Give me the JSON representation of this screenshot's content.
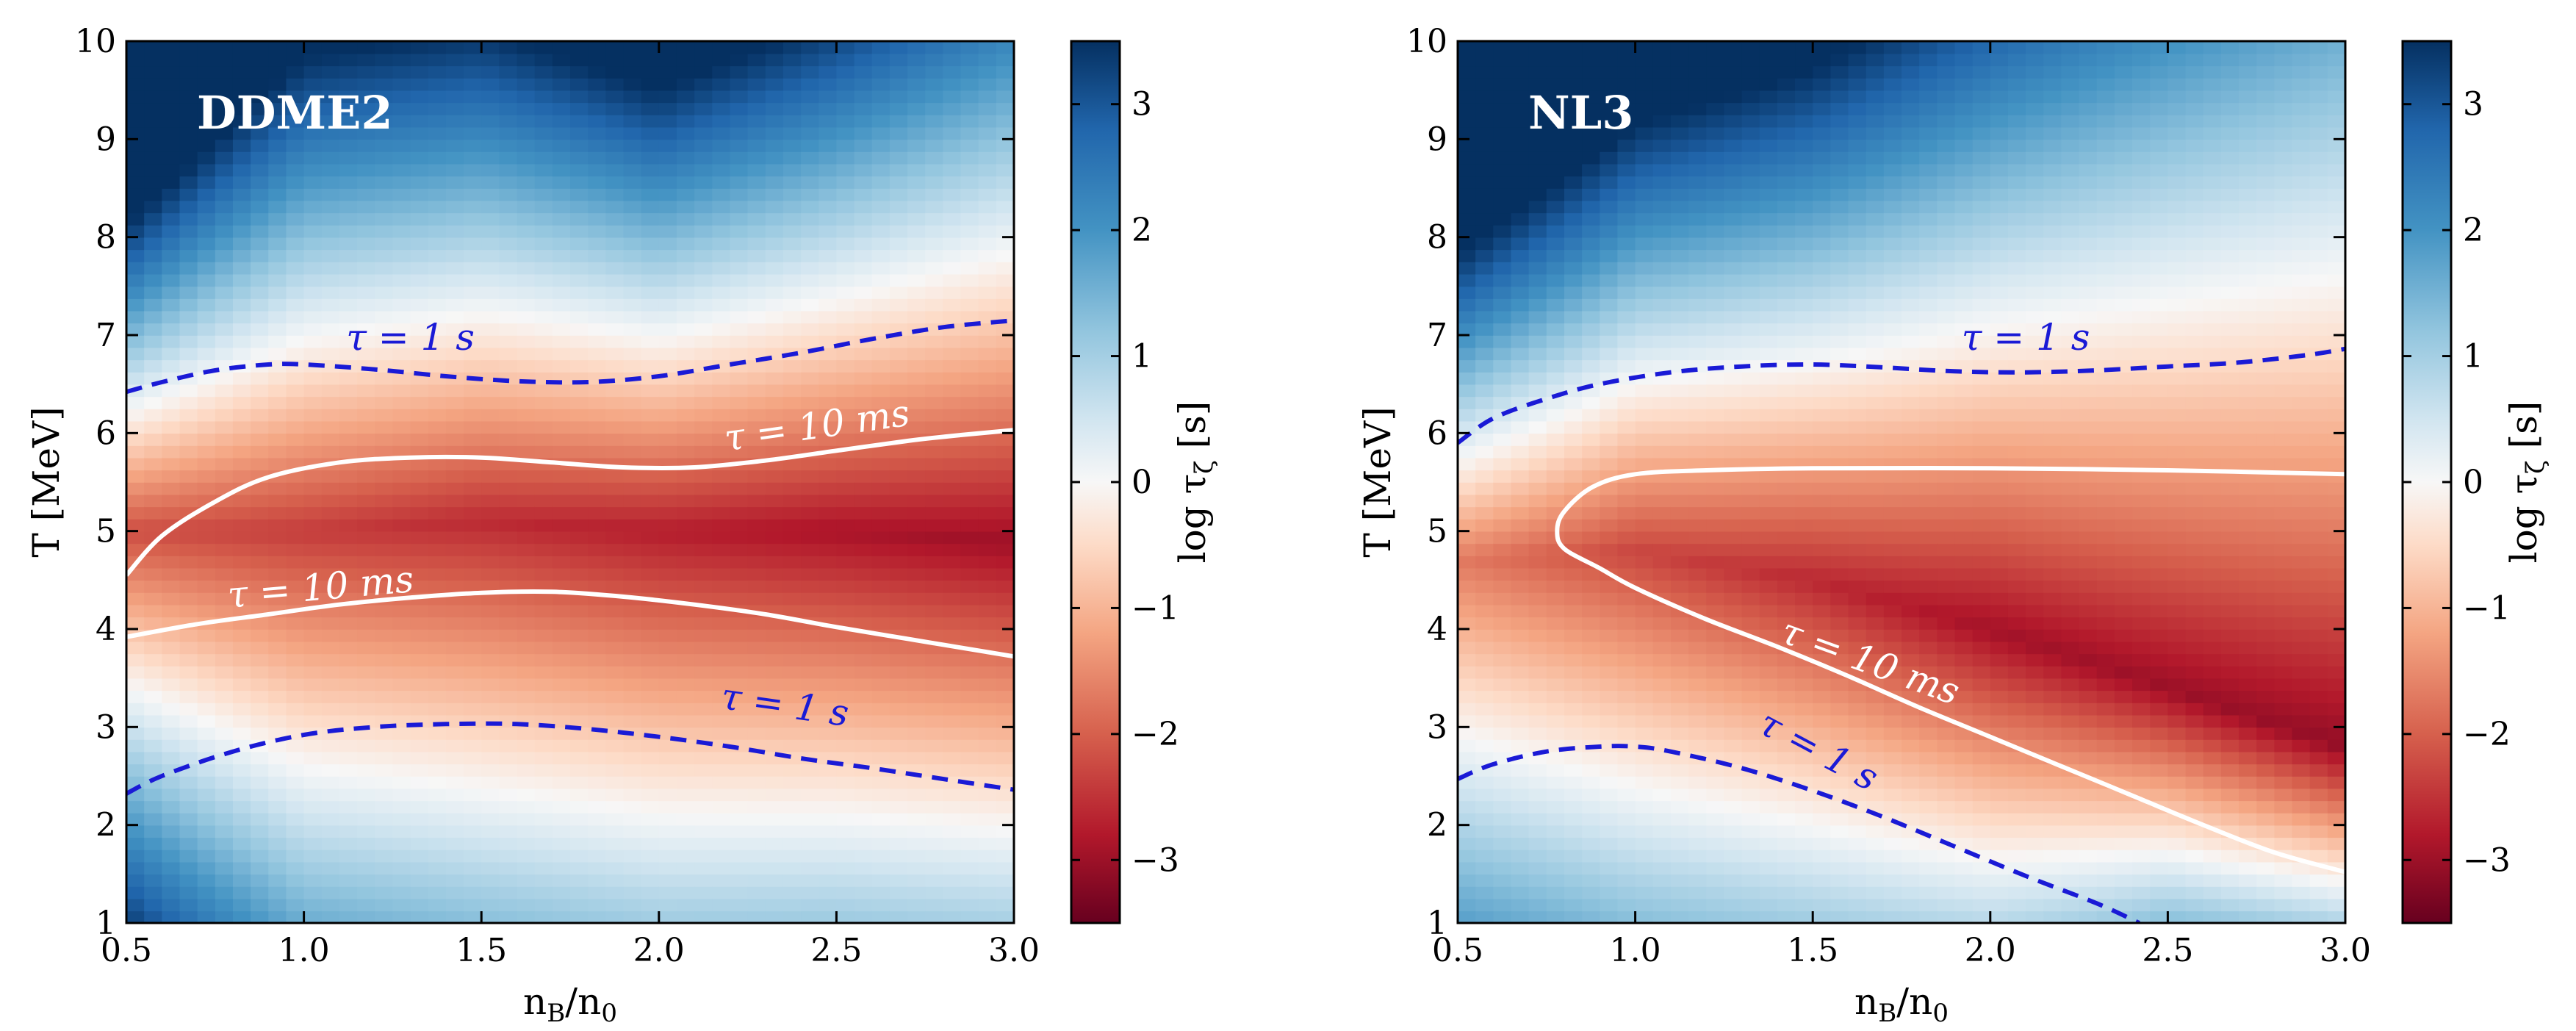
{
  "colormap": {
    "stops": [
      {
        "v": -3.5,
        "color": "#67001f"
      },
      {
        "v": -2.8,
        "color": "#b2182b"
      },
      {
        "v": -2.0,
        "color": "#d6604d"
      },
      {
        "v": -1.2,
        "color": "#f4a582"
      },
      {
        "v": -0.5,
        "color": "#fddbc7"
      },
      {
        "v": 0.0,
        "color": "#f7f7f7"
      },
      {
        "v": 0.5,
        "color": "#d1e5f0"
      },
      {
        "v": 1.2,
        "color": "#92c5de"
      },
      {
        "v": 2.0,
        "color": "#4393c3"
      },
      {
        "v": 2.8,
        "color": "#2166ac"
      },
      {
        "v": 3.5,
        "color": "#053061"
      }
    ],
    "white_contour_color": "#ffffff",
    "blue_contour_color": "#1a1ad6"
  },
  "chart_data": [
    {
      "type": "heatmap",
      "title": "DDME2",
      "xlabel": "n_B/n_0",
      "ylabel": "T [MeV]",
      "xlim": [
        0.5,
        3.0
      ],
      "ylim": [
        1,
        10
      ],
      "xticks": [
        "0.5",
        "1.0",
        "1.5",
        "2.0",
        "2.5",
        "3.0"
      ],
      "yticks": [
        "1",
        "2",
        "3",
        "4",
        "5",
        "6",
        "7",
        "8",
        "9",
        "10"
      ],
      "colorbar": {
        "label": "log τ_ζ [s]",
        "range": [
          -3.5,
          3.5
        ],
        "ticks": [
          "3",
          "2",
          "1",
          "0",
          "−1",
          "−2",
          "−3"
        ]
      },
      "field_model": {
        "description": "log10 of bulk viscous relaxation time vs density and temperature",
        "min_curve_T": [
          [
            0.5,
            5.0
          ],
          [
            1.0,
            5.0
          ],
          [
            1.5,
            5.1
          ],
          [
            2.0,
            5.0
          ],
          [
            2.5,
            5.0
          ],
          [
            3.0,
            4.9
          ]
        ],
        "min_value": [
          [
            0.5,
            -2.2
          ],
          [
            1.5,
            -2.6
          ],
          [
            2.5,
            -2.9
          ],
          [
            3.0,
            -3.0
          ]
        ],
        "width_upper": [
          [
            0.5,
            0.55
          ],
          [
            1.0,
            0.82
          ],
          [
            1.5,
            0.82
          ],
          [
            2.0,
            0.72
          ],
          [
            2.5,
            0.82
          ],
          [
            3.0,
            0.98
          ]
        ],
        "width_lower": [
          [
            0.5,
            0.72
          ],
          [
            1.0,
            1.0
          ],
          [
            1.5,
            1.05
          ],
          [
            2.0,
            1.05
          ],
          [
            2.5,
            1.0
          ],
          [
            3.0,
            0.98
          ]
        ]
      },
      "contours": [
        {
          "label": "τ = 10 ms",
          "style": "solid-white",
          "points": [
            [
              0.5,
              4.55
            ],
            [
              0.6,
              4.95
            ],
            [
              0.75,
              5.3
            ],
            [
              0.9,
              5.55
            ],
            [
              1.1,
              5.7
            ],
            [
              1.3,
              5.75
            ],
            [
              1.5,
              5.75
            ],
            [
              1.7,
              5.7
            ],
            [
              1.9,
              5.65
            ],
            [
              2.1,
              5.65
            ],
            [
              2.3,
              5.72
            ],
            [
              2.5,
              5.82
            ],
            [
              2.7,
              5.92
            ],
            [
              2.85,
              5.98
            ],
            [
              3.0,
              6.03
            ]
          ],
          "label_at": [
            2.45,
            5.95
          ],
          "label_angle": -8
        },
        {
          "label": "τ = 10 ms",
          "style": "solid-white",
          "points": [
            [
              0.5,
              3.92
            ],
            [
              0.7,
              4.05
            ],
            [
              0.9,
              4.15
            ],
            [
              1.1,
              4.25
            ],
            [
              1.3,
              4.32
            ],
            [
              1.5,
              4.37
            ],
            [
              1.7,
              4.38
            ],
            [
              1.9,
              4.33
            ],
            [
              2.1,
              4.25
            ],
            [
              2.3,
              4.15
            ],
            [
              2.5,
              4.02
            ],
            [
              2.7,
              3.9
            ],
            [
              2.9,
              3.78
            ],
            [
              3.0,
              3.72
            ]
          ],
          "label_at": [
            1.05,
            4.3
          ],
          "label_angle": -5
        },
        {
          "label": "τ = 1 s",
          "style": "dashed-blue",
          "points": [
            [
              0.5,
              6.42
            ],
            [
              0.6,
              6.52
            ],
            [
              0.75,
              6.64
            ],
            [
              0.9,
              6.7
            ],
            [
              1.0,
              6.7
            ],
            [
              1.2,
              6.65
            ],
            [
              1.4,
              6.58
            ],
            [
              1.6,
              6.53
            ],
            [
              1.8,
              6.52
            ],
            [
              2.0,
              6.58
            ],
            [
              2.2,
              6.7
            ],
            [
              2.4,
              6.82
            ],
            [
              2.6,
              6.96
            ],
            [
              2.8,
              7.08
            ],
            [
              3.0,
              7.15
            ]
          ],
          "label_at": [
            1.3,
            6.85
          ],
          "label_angle": 0
        },
        {
          "label": "τ = 1 s",
          "style": "dashed-blue",
          "points": [
            [
              0.5,
              2.32
            ],
            [
              0.6,
              2.5
            ],
            [
              0.8,
              2.75
            ],
            [
              1.0,
              2.92
            ],
            [
              1.2,
              3.0
            ],
            [
              1.4,
              3.03
            ],
            [
              1.6,
              3.03
            ],
            [
              1.8,
              2.98
            ],
            [
              2.0,
              2.9
            ],
            [
              2.2,
              2.8
            ],
            [
              2.4,
              2.68
            ],
            [
              2.6,
              2.58
            ],
            [
              2.8,
              2.47
            ],
            [
              3.0,
              2.36
            ]
          ],
          "label_at": [
            2.35,
            3.1
          ],
          "label_angle": 8
        }
      ]
    },
    {
      "type": "heatmap",
      "title": "NL3",
      "xlabel": "n_B/n_0",
      "ylabel": "T [MeV]",
      "xlim": [
        0.5,
        3.0
      ],
      "ylim": [
        1,
        10
      ],
      "xticks": [
        "0.5",
        "1.0",
        "1.5",
        "2.0",
        "2.5",
        "3.0"
      ],
      "yticks": [
        "1",
        "2",
        "3",
        "4",
        "5",
        "6",
        "7",
        "8",
        "9",
        "10"
      ],
      "colorbar": {
        "label": "log τ_ζ [s]",
        "range": [
          -3.5,
          3.5
        ],
        "ticks": [
          "3",
          "2",
          "1",
          "0",
          "−1",
          "−2",
          "−3"
        ]
      },
      "field_model": {
        "description": "log10 of bulk viscous relaxation time vs density and temperature",
        "min_curve_T": [
          [
            0.5,
            4.7
          ],
          [
            1.0,
            4.8
          ],
          [
            1.5,
            4.5
          ],
          [
            2.0,
            4.0
          ],
          [
            2.5,
            3.4
          ],
          [
            3.0,
            2.8
          ]
        ],
        "min_value": [
          [
            0.5,
            -1.7
          ],
          [
            1.0,
            -2.3
          ],
          [
            2.0,
            -2.95
          ],
          [
            3.0,
            -3.1
          ]
        ],
        "width_upper": [
          [
            0.5,
            0.6
          ],
          [
            1.0,
            0.75
          ],
          [
            1.5,
            0.85
          ],
          [
            2.0,
            1.05
          ],
          [
            2.5,
            1.3
          ],
          [
            3.0,
            1.55
          ]
        ],
        "width_lower": [
          [
            0.5,
            1.05
          ],
          [
            1.0,
            1.05
          ],
          [
            1.5,
            0.95
          ],
          [
            2.0,
            0.8
          ],
          [
            2.5,
            0.55
          ],
          [
            3.0,
            0.45
          ]
        ]
      },
      "contours": [
        {
          "label": "τ = 10 ms",
          "style": "solid-white",
          "points": [
            [
              3.0,
              1.52
            ],
            [
              2.8,
              1.72
            ],
            [
              2.6,
              2.0
            ],
            [
              2.4,
              2.3
            ],
            [
              2.2,
              2.6
            ],
            [
              2.0,
              2.9
            ],
            [
              1.8,
              3.2
            ],
            [
              1.6,
              3.52
            ],
            [
              1.4,
              3.82
            ],
            [
              1.2,
              4.1
            ],
            [
              1.0,
              4.42
            ],
            [
              0.9,
              4.62
            ],
            [
              0.8,
              4.82
            ],
            [
              0.78,
              5.0
            ],
            [
              0.8,
              5.2
            ],
            [
              0.88,
              5.45
            ],
            [
              1.0,
              5.58
            ],
            [
              1.2,
              5.62
            ],
            [
              1.5,
              5.64
            ],
            [
              2.0,
              5.64
            ],
            [
              2.5,
              5.62
            ],
            [
              3.0,
              5.58
            ]
          ],
          "label_at": [
            1.65,
            3.55
          ],
          "label_angle": 20
        },
        {
          "label": "τ = 1 s",
          "style": "dashed-blue",
          "points": [
            [
              0.5,
              5.9
            ],
            [
              0.6,
              6.15
            ],
            [
              0.75,
              6.35
            ],
            [
              0.9,
              6.5
            ],
            [
              1.1,
              6.62
            ],
            [
              1.3,
              6.68
            ],
            [
              1.5,
              6.7
            ],
            [
              1.7,
              6.67
            ],
            [
              1.9,
              6.63
            ],
            [
              2.1,
              6.62
            ],
            [
              2.3,
              6.64
            ],
            [
              2.5,
              6.68
            ],
            [
              2.7,
              6.72
            ],
            [
              2.9,
              6.8
            ],
            [
              3.0,
              6.86
            ]
          ],
          "label_at": [
            2.1,
            6.85
          ],
          "label_angle": 0
        },
        {
          "label": "τ = 1 s",
          "style": "dashed-blue",
          "points": [
            [
              0.5,
              2.47
            ],
            [
              0.6,
              2.62
            ],
            [
              0.75,
              2.75
            ],
            [
              0.9,
              2.8
            ],
            [
              1.0,
              2.8
            ],
            [
              1.1,
              2.75
            ],
            [
              1.3,
              2.58
            ],
            [
              1.5,
              2.35
            ],
            [
              1.7,
              2.08
            ],
            [
              1.9,
              1.78
            ],
            [
              2.1,
              1.48
            ],
            [
              2.3,
              1.2
            ],
            [
              2.42,
              1.0
            ]
          ],
          "label_at": [
            1.5,
            2.65
          ],
          "label_angle": 28
        }
      ]
    }
  ]
}
